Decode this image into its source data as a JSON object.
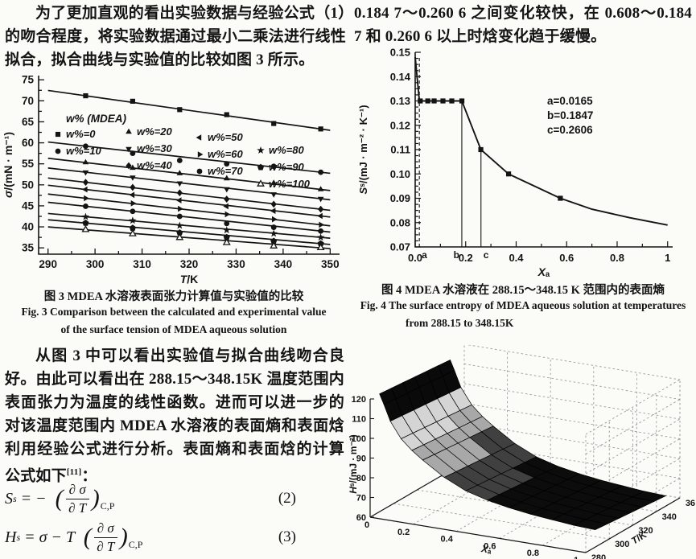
{
  "page": {
    "background": "#fbfbf8",
    "text_color": "#141414"
  },
  "left": {
    "para1": "为了更加直观的看出实验数据与经验公式（1）的吻合程度，将实验数据通过最小二乘法进行线性拟合，拟合曲线与实验值的比较如图 3 所示。",
    "fig3_caption_cn": "图 3  MDEA 水溶液表面张力计算值与实验值的比较",
    "fig3_caption_en1": "Fig. 3  Comparison between the calculated and experimental value",
    "fig3_caption_en2": "of the surface tension of MDEA aqueous solution",
    "para2_a": "从图 3 中可以看出实验值与拟合曲线吻合良好。由此可以看出在 288.15～348.15K 温度范围内表面张力为温度的线性函数。进而可以进一步的对该温度范围内 MDEA 水溶液的表面熵和表面焓利用经验公式进行分析。表面熵和表面焓的计算公式如下",
    "para2_ref": "[11]",
    "para2_b": "："
  },
  "right": {
    "para1": "0.184 7～0.260 6 之间变化较快，在 0.608～0.184 7 和 0.260 6 以上时焓变化趋于缓慢。",
    "fig4_caption_cn": "图 4  MDEA 水溶液在 288.15～348.15 K 范围内的表面熵",
    "fig4_caption_en1": "Fig. 4  The surface entropy of MDEA aqueous solution at temperatures",
    "fig4_caption_en2": "from 288.15 to 348.15K"
  },
  "equations": {
    "eq2": {
      "lhs": "S",
      "lhs_sup": "s",
      "rel": " = −  ",
      "num": "∂ σ",
      "den": "∂ T",
      "sub": "C,P",
      "label": "(2)"
    },
    "eq3": {
      "lhs": "H",
      "lhs_sup": "s",
      "rel": " = σ − T  ",
      "num": "∂ σ",
      "den": "∂ T",
      "sub": "C,P",
      "label": "(3)"
    }
  },
  "chart_data": [
    {
      "id": "fig3",
      "type": "line",
      "xlabel": "T/K",
      "ylabel": "σ/(mN · m⁻¹)",
      "xlim": [
        288,
        352
      ],
      "ylim": [
        33.5,
        76
      ],
      "xticks": [
        290,
        300,
        310,
        320,
        330,
        340,
        350
      ],
      "xtick_labels": [
        "290",
        "300",
        "310",
        "320",
        "330",
        "340",
        "350"
      ],
      "yticks": [
        35,
        40,
        45,
        50,
        55,
        60,
        65,
        70,
        75
      ],
      "ytick_labels": [
        "35",
        "40",
        "45",
        "50",
        "55",
        "60",
        "65",
        "70",
        "75"
      ],
      "legend_title": "w% (MDEA)",
      "x": [
        298,
        308,
        318,
        328,
        338,
        348
      ],
      "fit_line_x": [
        290,
        350
      ],
      "grid": false,
      "legend_position": "inside-top-left",
      "series": [
        {
          "label": "w%=0",
          "marker": "square",
          "values": [
            71.2,
            69.9,
            67.9,
            66.7,
            64.6,
            63.3
          ]
        },
        {
          "label": "w%=10",
          "marker": "circle",
          "values": [
            59.2,
            57.5,
            55.8,
            55.0,
            54.4,
            53.0
          ]
        },
        {
          "label": "w%=20",
          "marker": "triangle-up",
          "values": [
            55.3,
            54.0,
            52.7,
            51.5,
            50.4,
            48.9
          ]
        },
        {
          "label": "w%=30",
          "marker": "triangle-down",
          "values": [
            53.0,
            51.8,
            50.4,
            49.0,
            47.8,
            46.7
          ]
        },
        {
          "label": "w%=40",
          "marker": "diamond",
          "values": [
            50.6,
            49.4,
            48.1,
            46.6,
            45.4,
            44.2
          ]
        },
        {
          "label": "w%=50",
          "marker": "triangle-left",
          "values": [
            48.9,
            47.6,
            46.3,
            44.9,
            43.8,
            42.6
          ]
        },
        {
          "label": "w%=60",
          "marker": "triangle-right",
          "values": [
            46.8,
            45.6,
            44.3,
            43.0,
            41.8,
            40.5
          ]
        },
        {
          "label": "w%=70",
          "marker": "circle",
          "values": [
            44.9,
            43.7,
            42.5,
            40.8,
            39.9,
            39.0
          ]
        },
        {
          "label": "w%=80",
          "marker": "star",
          "values": [
            42.4,
            41.5,
            40.3,
            39.2,
            38.4,
            37.5
          ]
        },
        {
          "label": "w%=90",
          "marker": "pentagon",
          "values": [
            40.9,
            39.7,
            38.6,
            37.5,
            36.6,
            36.0
          ]
        },
        {
          "label": "w%=100",
          "marker": "triangle-up-open",
          "values": [
            39.3,
            38.3,
            37.4,
            36.2,
            35.4,
            35.0
          ]
        }
      ]
    },
    {
      "id": "fig4",
      "type": "line",
      "xlabel": "Xₐ",
      "ylabel": "Sˢ/(mJ · m⁻² · K⁻¹)",
      "xlim": [
        0,
        1.02
      ],
      "ylim": [
        0.07,
        0.15
      ],
      "xticks": [
        0,
        0.2,
        0.4,
        0.6,
        0.8,
        1
      ],
      "xtick_labels": [
        "0.0",
        "0.2",
        "0.4",
        "0.6",
        "0.8",
        "1"
      ],
      "yticks": [
        0.07,
        0.08,
        0.09,
        0.1,
        0.11,
        0.12,
        0.13,
        0.14,
        0.15
      ],
      "ytick_labels": [
        "0.07",
        "0.08",
        "0.09",
        "0.10",
        "0.11",
        "0.12",
        "0.13",
        "0.14",
        "0.15"
      ],
      "grid": false,
      "legend_position": "none",
      "curve": [
        [
          0.0,
          0.148
        ],
        [
          0.0165,
          0.13
        ],
        [
          0.185,
          0.13
        ],
        [
          0.26,
          0.11
        ],
        [
          0.37,
          0.1
        ],
        [
          0.575,
          0.09
        ],
        [
          0.7,
          0.0855
        ],
        [
          0.85,
          0.082
        ],
        [
          1.0,
          0.079
        ]
      ],
      "markers": [
        [
          0.02,
          0.13
        ],
        [
          0.05,
          0.13
        ],
        [
          0.075,
          0.13
        ],
        [
          0.11,
          0.13
        ],
        [
          0.145,
          0.13
        ],
        [
          0.185,
          0.13
        ],
        [
          0.26,
          0.11
        ],
        [
          0.37,
          0.1
        ],
        [
          0.575,
          0.09
        ]
      ],
      "vlines": [
        {
          "x": 0.0165,
          "top": 0.148,
          "style": "dashed",
          "label": "a"
        },
        {
          "x": 0.1847,
          "top": 0.13,
          "style": "solid",
          "label": "b"
        },
        {
          "x": 0.2606,
          "top": 0.11,
          "style": "solid",
          "label": "c"
        }
      ],
      "annotation": [
        "a=0.0165",
        "b=0.1847",
        "c=0.2606"
      ]
    },
    {
      "id": "fig5",
      "type": "surface",
      "xlabel": "Xₐ",
      "ylabel": "T/K",
      "zlabel": "Hˢ/(mJ · m⁻²)",
      "xticks": [
        0,
        0.2,
        0.4,
        0.6,
        0.8,
        1
      ],
      "xtick_labels": [
        "0",
        "0.2",
        "0.4",
        "0.6",
        "0.8",
        "1"
      ],
      "yticks": [
        280,
        300,
        320,
        340,
        360
      ],
      "ytick_labels": [
        "280",
        "300",
        "320",
        "340",
        "360"
      ],
      "zticks": [
        60,
        70,
        80,
        90,
        100,
        110,
        120
      ],
      "ztick_labels": [
        "60",
        "70",
        "80",
        "90",
        "100",
        "110",
        "120"
      ],
      "xlim": [
        0,
        1
      ],
      "ylim": [
        280,
        360
      ],
      "zlim": [
        60,
        120
      ],
      "x": [
        0,
        0.02,
        0.05,
        0.1,
        0.15,
        0.2,
        0.3,
        0.4,
        0.5,
        0.6,
        0.7,
        0.8,
        0.9,
        1.0
      ],
      "t": [
        288,
        298,
        308,
        318,
        328,
        338,
        348
      ],
      "h": [
        [
          119.8,
          114.8,
          106.8,
          98.8,
          93.8,
          89.8,
          82.8,
          77.8,
          74.8,
          72.8,
          71.3,
          70.3,
          69.3,
          68.8
        ],
        [
          119.2,
          114.2,
          106.2,
          98.2,
          93.2,
          89.2,
          82.2,
          77.2,
          74.2,
          72.2,
          70.7,
          69.7,
          68.7,
          68.2
        ],
        [
          118.6,
          113.6,
          105.6,
          97.6,
          92.6,
          88.6,
          81.6,
          76.6,
          73.6,
          71.6,
          70.1,
          69.1,
          68.1,
          67.6
        ],
        [
          118.0,
          113.0,
          105.0,
          97.0,
          92.0,
          88.0,
          81.0,
          76.0,
          73.0,
          71.0,
          69.5,
          68.5,
          67.5,
          67.0
        ],
        [
          117.4,
          112.4,
          104.4,
          96.4,
          91.4,
          87.4,
          80.4,
          75.4,
          72.4,
          70.4,
          68.9,
          67.9,
          66.9,
          66.4
        ],
        [
          116.8,
          111.8,
          103.8,
          95.8,
          90.8,
          86.8,
          79.8,
          74.8,
          71.8,
          69.8,
          68.3,
          67.3,
          66.3,
          65.8
        ],
        [
          116.2,
          111.2,
          103.2,
          95.2,
          90.2,
          86.2,
          79.2,
          74.2,
          71.2,
          69.2,
          67.7,
          66.7,
          65.7,
          65.2
        ]
      ]
    }
  ]
}
